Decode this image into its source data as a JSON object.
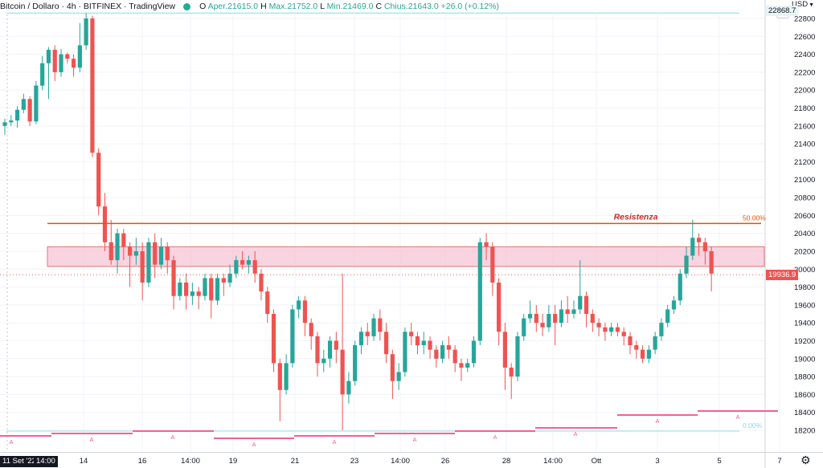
{
  "header": {
    "symbol": "Bitcoin / Dollaro · 4h · BITFINEX · TradingView",
    "ohlc": [
      {
        "label": "O",
        "value": "Aper.21615.0"
      },
      {
        "label": "H",
        "value": "Max.21752.0"
      },
      {
        "label": "L",
        "value": "Min.21469.0"
      },
      {
        "label": "C",
        "value": "Chius.21643.0"
      },
      {
        "label": "",
        "value": "+26.0 (+0.12%)"
      }
    ]
  },
  "axis": {
    "currency": "USD",
    "top_price_label": "22868.7",
    "current_price_label": "19936.9",
    "time_label_left": "11 Set '22",
    "time_label_right": "14:00"
  },
  "annotations": {
    "resistance_text": "Resistenza",
    "fib_50_label": "50.00%",
    "fib_0_label": "0.00%",
    "alert_marker": "A"
  },
  "colors": {
    "up": "#26a69a",
    "down": "#ef5350",
    "wick_up": "#26a69a",
    "wick_down": "#ef5350",
    "resistance_line": "#e65100",
    "resistance_text": "#c62828",
    "zone_fill": "#f8bbd0",
    "zone_border": "#e57373",
    "grid": "#f0f3fa",
    "fib_top": "#80deea",
    "alert": "#f06292"
  },
  "chart_data": {
    "type": "candlestick",
    "interval": "4h",
    "y_ticks": [
      18200,
      18400,
      18600,
      18800,
      19000,
      19200,
      19400,
      19600,
      19800,
      20000,
      20200,
      20400,
      20600,
      20800,
      21000,
      21200,
      21400,
      21600,
      21800,
      22000,
      22200,
      22400,
      22600,
      22800
    ],
    "x_ticks": [
      {
        "label": "14",
        "x": 104
      },
      {
        "label": "16",
        "x": 177
      },
      {
        "label": "14:00",
        "x": 237
      },
      {
        "label": "19",
        "x": 290
      },
      {
        "label": "21",
        "x": 367
      },
      {
        "label": "23",
        "x": 441
      },
      {
        "label": "14:00",
        "x": 498
      },
      {
        "label": "26",
        "x": 554
      },
      {
        "label": "28",
        "x": 630
      },
      {
        "label": "14:00",
        "x": 688
      },
      {
        "label": "Ott",
        "x": 742
      },
      {
        "label": "3",
        "x": 818
      },
      {
        "label": "5",
        "x": 895
      },
      {
        "label": "7",
        "x": 970
      }
    ],
    "resistance_price": 20510,
    "zone_top": 20250,
    "zone_bottom": 20030,
    "fib_top_price": 22860,
    "current_price": 19936.9,
    "candles": [
      [
        21600,
        21640,
        21500,
        21680
      ],
      [
        21640,
        21660,
        21600,
        21720
      ],
      [
        21660,
        21780,
        21580,
        21820
      ],
      [
        21780,
        21900,
        21740,
        21960
      ],
      [
        21900,
        21650,
        21600,
        21930
      ],
      [
        21650,
        22050,
        21620,
        22100
      ],
      [
        22050,
        22300,
        22000,
        22380
      ],
      [
        22300,
        22450,
        21900,
        22480
      ],
      [
        22450,
        22200,
        22100,
        22500
      ],
      [
        22200,
        22400,
        22150,
        22460
      ],
      [
        22400,
        22350,
        22300,
        22420
      ],
      [
        22350,
        22250,
        22150,
        22400
      ],
      [
        22250,
        22500,
        22200,
        22750
      ],
      [
        22500,
        22800,
        22450,
        22860
      ],
      [
        22800,
        21300,
        21250,
        22830
      ],
      [
        21300,
        20700,
        20600,
        21350
      ],
      [
        20700,
        20300,
        20200,
        20850
      ],
      [
        20300,
        20100,
        20050,
        20550
      ],
      [
        20100,
        20400,
        19950,
        20450
      ],
      [
        20400,
        20250,
        20100,
        20450
      ],
      [
        20250,
        20150,
        19800,
        20300
      ],
      [
        20150,
        20200,
        20050,
        20350
      ],
      [
        20200,
        19850,
        19650,
        20300
      ],
      [
        19850,
        20300,
        19800,
        20350
      ],
      [
        20300,
        20050,
        19900,
        20400
      ],
      [
        20050,
        20250,
        20000,
        20350
      ],
      [
        20250,
        20100,
        19950,
        20300
      ],
      [
        20100,
        19700,
        19550,
        20150
      ],
      [
        19700,
        19850,
        19650,
        19900
      ],
      [
        19850,
        19700,
        19550,
        19950
      ],
      [
        19700,
        19750,
        19600,
        19850
      ],
      [
        19750,
        19700,
        19550,
        19800
      ],
      [
        19700,
        19900,
        19650,
        19950
      ],
      [
        19900,
        19650,
        19450,
        19950
      ],
      [
        19650,
        19900,
        19600,
        19950
      ],
      [
        19900,
        19850,
        19700,
        19950
      ],
      [
        19850,
        19950,
        19800,
        20050
      ],
      [
        19950,
        20100,
        19900,
        20150
      ],
      [
        20100,
        20050,
        20000,
        20200
      ],
      [
        20050,
        20100,
        19950,
        20150
      ],
      [
        20100,
        19950,
        19850,
        20200
      ],
      [
        19950,
        19750,
        19650,
        20000
      ],
      [
        19750,
        19500,
        19400,
        19800
      ],
      [
        19500,
        18950,
        18850,
        19550
      ],
      [
        18950,
        18650,
        18300,
        19000
      ],
      [
        18650,
        18950,
        18600,
        19050
      ],
      [
        18950,
        19550,
        18900,
        19600
      ],
      [
        19550,
        19650,
        19450,
        19700
      ],
      [
        19650,
        19400,
        19250,
        19700
      ],
      [
        19400,
        19250,
        19100,
        19450
      ],
      [
        19250,
        18950,
        18800,
        19300
      ],
      [
        18950,
        19000,
        18850,
        19100
      ],
      [
        19000,
        19200,
        18900,
        19250
      ],
      [
        19200,
        19100,
        18950,
        19300
      ],
      [
        19100,
        18600,
        18200,
        19950
      ],
      [
        18600,
        18750,
        18500,
        18850
      ],
      [
        18750,
        19150,
        18700,
        19200
      ],
      [
        19150,
        19300,
        19050,
        19350
      ],
      [
        19300,
        19250,
        19150,
        19400
      ],
      [
        19250,
        19450,
        19200,
        19500
      ],
      [
        19450,
        19300,
        19200,
        19550
      ],
      [
        19300,
        19050,
        18950,
        19400
      ],
      [
        19050,
        18750,
        18550,
        19100
      ],
      [
        18750,
        18850,
        18650,
        18950
      ],
      [
        18850,
        19300,
        18800,
        19350
      ],
      [
        19300,
        19250,
        19150,
        19400
      ],
      [
        19250,
        19150,
        19050,
        19300
      ],
      [
        19150,
        19200,
        19050,
        19300
      ],
      [
        19200,
        19100,
        19000,
        19250
      ],
      [
        19100,
        19000,
        18900,
        19150
      ],
      [
        19000,
        19150,
        18950,
        19200
      ],
      [
        19150,
        19100,
        19000,
        19250
      ],
      [
        19100,
        18950,
        18850,
        19150
      ],
      [
        18950,
        18900,
        18750,
        19000
      ],
      [
        18900,
        18950,
        18850,
        19000
      ],
      [
        18950,
        19200,
        18900,
        19250
      ],
      [
        19200,
        20300,
        19150,
        20350
      ],
      [
        20300,
        20250,
        20100,
        20400
      ],
      [
        20250,
        19850,
        19700,
        20300
      ],
      [
        19850,
        19300,
        19150,
        19900
      ],
      [
        19300,
        18900,
        18650,
        19400
      ],
      [
        18900,
        18800,
        18550,
        18950
      ],
      [
        18800,
        19250,
        18750,
        19300
      ],
      [
        19250,
        19450,
        19200,
        19500
      ],
      [
        19450,
        19500,
        19400,
        19650
      ],
      [
        19500,
        19400,
        19300,
        19600
      ],
      [
        19400,
        19350,
        19250,
        19500
      ],
      [
        19350,
        19500,
        19300,
        19600
      ],
      [
        19500,
        19400,
        19150,
        19600
      ],
      [
        19400,
        19550,
        19350,
        19650
      ],
      [
        19550,
        19500,
        19400,
        19700
      ],
      [
        19500,
        19550,
        19450,
        19650
      ],
      [
        19550,
        19700,
        19500,
        20100
      ],
      [
        19700,
        19500,
        19350,
        19750
      ],
      [
        19500,
        19400,
        19300,
        19550
      ],
      [
        19400,
        19350,
        19250,
        19450
      ],
      [
        19350,
        19300,
        19200,
        19400
      ],
      [
        19300,
        19350,
        19250,
        19400
      ],
      [
        19350,
        19300,
        19250,
        19400
      ],
      [
        19300,
        19250,
        19150,
        19350
      ],
      [
        19250,
        19150,
        19050,
        19300
      ],
      [
        19150,
        19100,
        19000,
        19200
      ],
      [
        19100,
        19000,
        18950,
        19150
      ],
      [
        19000,
        19100,
        18950,
        19150
      ],
      [
        19100,
        19250,
        19050,
        19300
      ],
      [
        19250,
        19400,
        19200,
        19450
      ],
      [
        19400,
        19550,
        19350,
        19600
      ],
      [
        19550,
        19650,
        19500,
        19700
      ],
      [
        19650,
        19950,
        19600,
        20000
      ],
      [
        19950,
        20150,
        19900,
        20250
      ],
      [
        20150,
        20350,
        20100,
        20550
      ],
      [
        20350,
        20300,
        20150,
        20400
      ],
      [
        20300,
        20200,
        20050,
        20350
      ],
      [
        20200,
        19950,
        19750,
        20250
      ]
    ],
    "candle_x_start": 6,
    "candle_x_step": 7.78
  }
}
